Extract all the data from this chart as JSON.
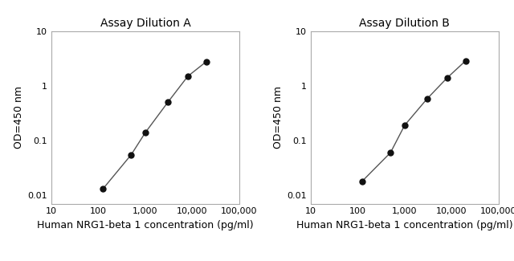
{
  "title_A": "Assay Dilution A",
  "title_B": "Assay Dilution B",
  "xlabel": "Human NRG1-beta 1 concentration (pg/ml)",
  "ylabel": "OD=450 nm",
  "x_A": [
    125,
    500,
    1000,
    3000,
    8000,
    20000
  ],
  "y_A": [
    0.013,
    0.055,
    0.14,
    0.5,
    1.5,
    2.8
  ],
  "x_B": [
    125,
    500,
    1000,
    3000,
    8000,
    20000
  ],
  "y_B": [
    0.018,
    0.06,
    0.19,
    0.58,
    1.4,
    2.9
  ],
  "xlim": [
    10,
    100000
  ],
  "ylim": [
    0.007,
    10
  ],
  "line_color": "#555555",
  "marker_color": "#111111",
  "marker_size": 5,
  "title_fontsize": 10,
  "label_fontsize": 9,
  "tick_fontsize": 8,
  "tick_color": "#000000",
  "label_color": "#000000",
  "spine_color": "#aaaaaa",
  "background_color": "#ffffff"
}
